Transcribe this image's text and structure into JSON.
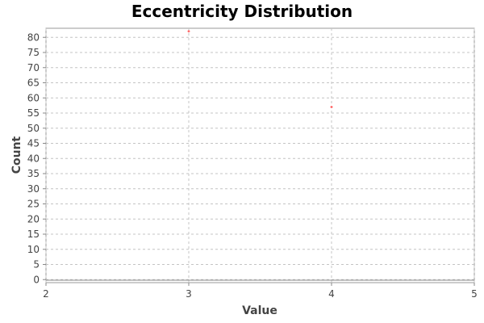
{
  "chart_data": {
    "type": "scatter",
    "title": "Eccentricity Distribution",
    "xlabel": "Value",
    "ylabel": "Count",
    "xlim": [
      2,
      5
    ],
    "ylim": [
      -1,
      83
    ],
    "xticks": [
      2,
      3,
      4,
      5
    ],
    "yticks": [
      0,
      5,
      10,
      15,
      20,
      25,
      30,
      35,
      40,
      45,
      50,
      55,
      60,
      65,
      70,
      75,
      80
    ],
    "grid": true,
    "legend": "none",
    "series": [
      {
        "color": "#ff5555",
        "points": [
          {
            "x": 3,
            "y": 82
          },
          {
            "x": 4,
            "y": 57
          }
        ]
      }
    ]
  }
}
